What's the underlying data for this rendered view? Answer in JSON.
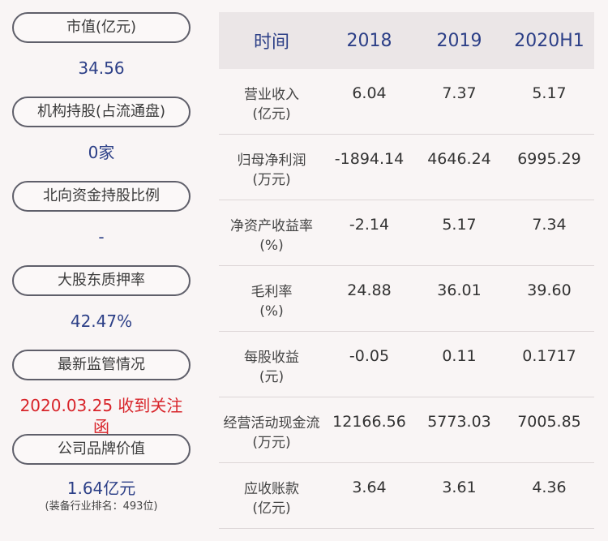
{
  "left": {
    "items": [
      {
        "label": "市值(亿元)",
        "value": "34.56"
      },
      {
        "label": "机构持股(占流通盘)",
        "value": "0家"
      },
      {
        "label": "北向资金持股比例",
        "value": "-"
      },
      {
        "label": "大股东质押率",
        "value": "42.47%"
      },
      {
        "label": "最新监管情况",
        "value": "2020.03.25 收到关注函",
        "color": "#d8242a"
      },
      {
        "label": "公司品牌价值",
        "value": "1.64亿元",
        "sub": "(装备行业排名：493位)"
      }
    ]
  },
  "table": {
    "headers": [
      "时间",
      "2018",
      "2019",
      "2020H1"
    ],
    "rows": [
      {
        "label_line1": "营业收入",
        "label_line2": "(亿元)",
        "values": [
          "6.04",
          "7.37",
          "5.17"
        ]
      },
      {
        "label_line1": "归母净利润",
        "label_line2": "(万元)",
        "values": [
          "-1894.14",
          "4646.24",
          "6995.29"
        ]
      },
      {
        "label_line1": "净资产收益率",
        "label_line2": "(%)",
        "values": [
          "-2.14",
          "5.17",
          "7.34"
        ]
      },
      {
        "label_line1": "毛利率",
        "label_line2": "(%)",
        "values": [
          "24.88",
          "36.01",
          "39.60"
        ]
      },
      {
        "label_line1": "每股收益",
        "label_line2": "(元)",
        "values": [
          "-0.05",
          "0.11",
          "0.1717"
        ]
      },
      {
        "label_line1": "经营活动现金流",
        "label_line2": "(万元)",
        "values": [
          "12166.56",
          "5773.03",
          "7005.85"
        ]
      },
      {
        "label_line1": "应收账款",
        "label_line2": "(亿元)",
        "values": [
          "3.64",
          "3.61",
          "4.36"
        ]
      }
    ]
  },
  "colors": {
    "background": "#f9f5f5",
    "accent_blue": "#2c3f87",
    "alert_red": "#d8242a",
    "header_bg": "#ebe6e7"
  }
}
